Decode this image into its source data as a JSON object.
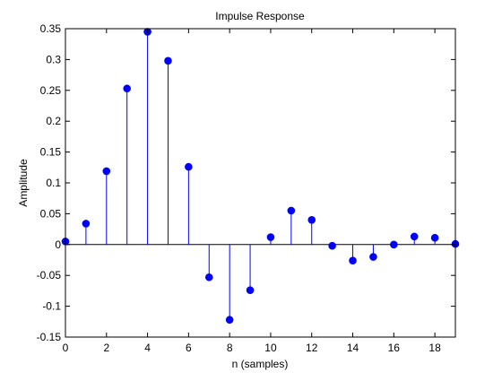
{
  "figure": {
    "background": "#ffffff",
    "axes_background": "#ffffff"
  },
  "chart_data": {
    "type": "stem",
    "title": "Impulse Response",
    "xlabel": "n (samples)",
    "ylabel": "Amplitude",
    "xlim": [
      0,
      19
    ],
    "ylim": [
      -0.15,
      0.35
    ],
    "xticks": [
      0,
      2,
      4,
      6,
      8,
      10,
      12,
      14,
      16,
      18
    ],
    "xtick_labels": [
      "0",
      "2",
      "4",
      "6",
      "8",
      "10",
      "12",
      "14",
      "16",
      "18"
    ],
    "yticks": [
      -0.15,
      -0.1,
      -0.05,
      0,
      0.05,
      0.1,
      0.15,
      0.2,
      0.25,
      0.3,
      0.35
    ],
    "ytick_labels": [
      "-0.15",
      "-0.1",
      "-0.05",
      "0",
      "0.05",
      "0.1",
      "0.15",
      "0.2",
      "0.25",
      "0.3",
      "0.35"
    ],
    "grid": false,
    "legend": "none",
    "color": "#0000ff",
    "x": [
      0,
      1,
      2,
      3,
      4,
      5,
      6,
      7,
      8,
      9,
      10,
      11,
      12,
      13,
      14,
      15,
      16,
      17,
      18,
      19
    ],
    "values": [
      0.005,
      0.034,
      0.119,
      0.253,
      0.345,
      0.298,
      0.126,
      -0.053,
      -0.122,
      -0.074,
      0.012,
      0.055,
      0.04,
      -0.002,
      -0.026,
      -0.02,
      0.0,
      0.013,
      0.011,
      0.001
    ]
  }
}
